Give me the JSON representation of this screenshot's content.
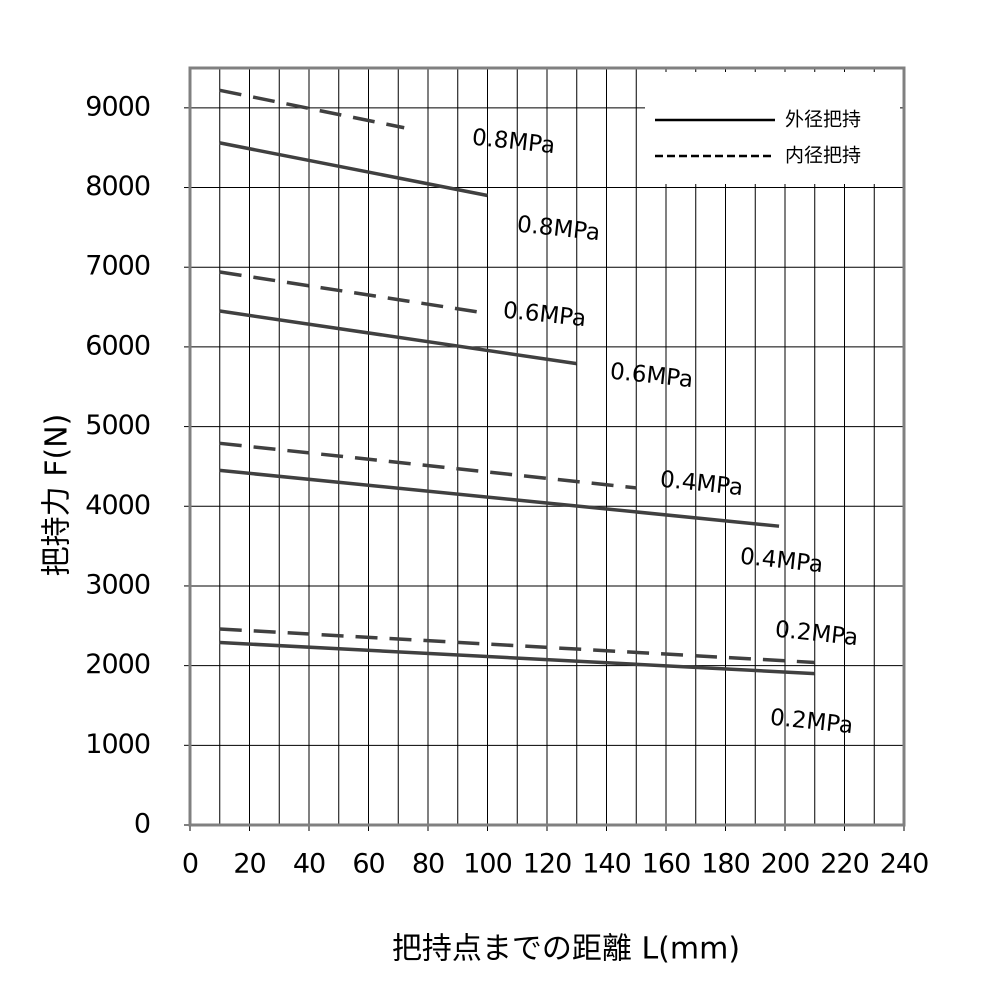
{
  "chart_data": {
    "type": "line",
    "ylabel": "把持力 F(N)",
    "xlabel": "把持点までの距離 L(mm)",
    "xlim": [
      0,
      240
    ],
    "xticks": [
      0,
      20,
      40,
      60,
      80,
      100,
      120,
      140,
      160,
      180,
      200,
      220,
      240
    ],
    "x_minor_grid": [
      10,
      30,
      50,
      70,
      90,
      110,
      130,
      150,
      170,
      190,
      210,
      230
    ],
    "ylim": [
      0,
      9500
    ],
    "yticks": [
      0,
      1000,
      2000,
      3000,
      4000,
      5000,
      6000,
      7000,
      8000,
      9000
    ],
    "grid": true,
    "legend_position": "upper right",
    "legend": [
      {
        "label": "外径把持",
        "style": "solid"
      },
      {
        "label": "内径把持",
        "style": "dashed"
      }
    ],
    "series": [
      {
        "name": "0.8MPa",
        "style": "dashed",
        "color": "#404040",
        "x": [
          10,
          72
        ],
        "values": [
          9220,
          8750
        ]
      },
      {
        "name": "0.8MPa",
        "style": "solid",
        "color": "#404040",
        "x": [
          10,
          100
        ],
        "values": [
          8560,
          7900
        ]
      },
      {
        "name": "0.6MPa",
        "style": "dashed",
        "color": "#404040",
        "x": [
          10,
          100
        ],
        "values": [
          6940,
          6420
        ]
      },
      {
        "name": "0.6MPa",
        "style": "solid",
        "color": "#404040",
        "x": [
          10,
          130
        ],
        "values": [
          6450,
          5790
        ]
      },
      {
        "name": "0.4MPa",
        "style": "dashed",
        "color": "#404040",
        "x": [
          10,
          150
        ],
        "values": [
          4790,
          4230
        ]
      },
      {
        "name": "0.4MPa",
        "style": "solid",
        "color": "#404040",
        "x": [
          10,
          198
        ],
        "values": [
          4450,
          3750
        ]
      },
      {
        "name": "0.2MPa",
        "style": "dashed",
        "color": "#404040",
        "x": [
          10,
          210
        ],
        "values": [
          2460,
          2040
        ]
      },
      {
        "name": "0.2MPa",
        "style": "solid",
        "color": "#404040",
        "x": [
          10,
          210
        ],
        "values": [
          2290,
          1900
        ]
      }
    ]
  }
}
